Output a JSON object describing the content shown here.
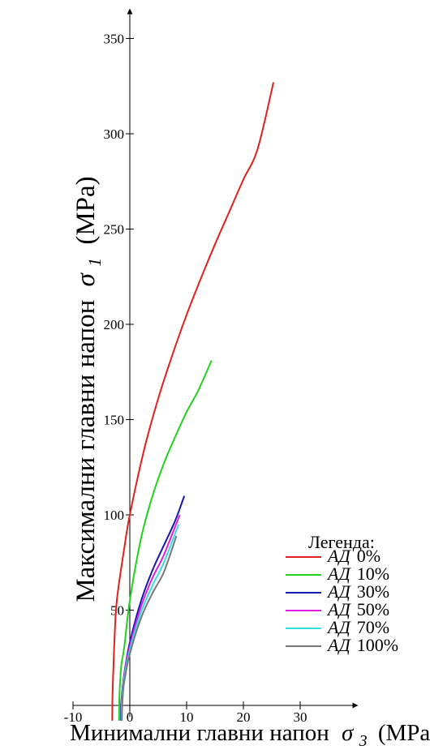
{
  "chart_data": {
    "type": "line",
    "xlabel_prefix": "Минимални главни напон",
    "xlabel_symbol": "σ",
    "xlabel_sub": "3",
    "xlabel_unit": "(MPa)",
    "ylabel_prefix": "Максимални главни напон",
    "ylabel_symbol": "σ",
    "ylabel_sub": "1",
    "ylabel_unit": "(MPa)",
    "xlim": [
      -10,
      38
    ],
    "ylim": [
      0,
      375
    ],
    "xticks": [
      -10,
      0,
      10,
      20,
      30
    ],
    "yticks": [
      50,
      100,
      150,
      200,
      250,
      300,
      350
    ],
    "grid": false,
    "legend_title": "Легенда:",
    "legend_position": "right",
    "legend_prefix": "АД",
    "series": [
      {
        "name": "0%",
        "color": "#e0211d",
        "sigma_c": 100,
        "k": 20.5,
        "x": [
          -3.1,
          -3.0,
          -2.5,
          -2.0,
          -1.0,
          0,
          2.5,
          5,
          7.5,
          10,
          12.5,
          15,
          17.5,
          20,
          22.5,
          25.3
        ],
        "y": [
          -8,
          10,
          47,
          62,
          82,
          100,
          134,
          161,
          184,
          205,
          224,
          242,
          259,
          276,
          292,
          327
        ]
      },
      {
        "name": "10%",
        "color": "#22d022",
        "sigma_c": 55,
        "k": 18.0,
        "x": [
          -1.9,
          -1.8,
          -1.5,
          -1.0,
          0,
          2,
          4,
          6,
          8,
          10,
          12,
          14.4
        ],
        "y": [
          -8,
          7,
          21,
          30,
          55,
          88,
          110,
          127,
          141,
          154,
          165,
          181
        ]
      },
      {
        "name": "30%",
        "color": "#1616b0",
        "sigma_c": 33,
        "k": 17.0,
        "x": [
          -1.6,
          -1.5,
          -1.0,
          0,
          2,
          4,
          6,
          8,
          9.6
        ],
        "y": [
          -8,
          2,
          16,
          33,
          55,
          71,
          84,
          97,
          110
        ]
      },
      {
        "name": "50%",
        "color": "#e020e0",
        "sigma_c": 31,
        "k": 16.0,
        "x": [
          -1.5,
          -1.4,
          -1.0,
          0,
          2,
          4,
          6,
          8.8
        ],
        "y": [
          -8,
          2,
          15,
          31,
          52,
          67,
          79,
          100
        ]
      },
      {
        "name": "70%",
        "color": "#33e0dd",
        "sigma_c": 29,
        "k": 15.5,
        "x": [
          -1.5,
          -1.4,
          -1.0,
          0,
          2,
          4,
          6,
          8.6
        ],
        "y": [
          -8,
          2,
          14,
          29,
          49,
          63,
          75,
          95
        ]
      },
      {
        "name": "100%",
        "color": "#777777",
        "sigma_c": 27,
        "k": 15.0,
        "x": [
          -1.4,
          -1.3,
          -1.0,
          0,
          2,
          4,
          6,
          8.2
        ],
        "y": [
          -8,
          2,
          12,
          27,
          46,
          59,
          70,
          89
        ]
      }
    ]
  }
}
